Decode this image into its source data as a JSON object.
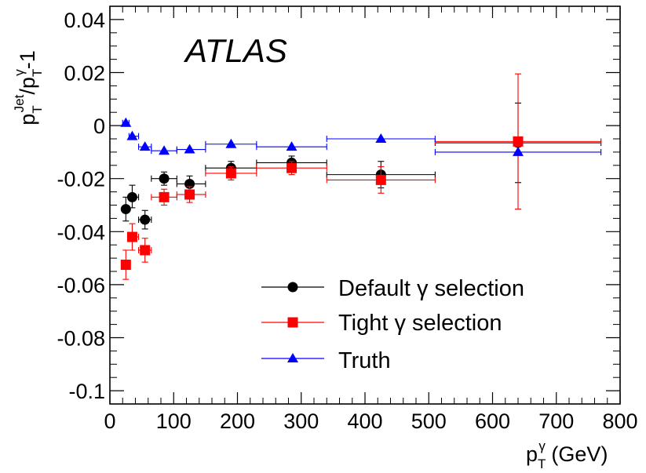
{
  "chart_data": {
    "type": "scatter",
    "experiment_label": "ATLAS",
    "xlabel": {
      "main": "p",
      "sup": "γ",
      "sub": "T",
      "unit": " (GeV)"
    },
    "ylabel": {
      "p1": "p",
      "sup1": "Jet",
      "sub1": "T",
      "slash": "/p",
      "sup2": "γ",
      "sub2": "T",
      "tail": "-1"
    },
    "xlim": [
      0,
      800
    ],
    "ylim": [
      -0.105,
      0.045
    ],
    "x_ticks": [
      0,
      100,
      200,
      300,
      400,
      500,
      600,
      700,
      800
    ],
    "x_tick_labels": [
      "0",
      "100",
      "200",
      "300",
      "400",
      "500",
      "600",
      "700",
      "800"
    ],
    "y_ticks": [
      -0.1,
      -0.08,
      -0.06,
      -0.04,
      -0.02,
      0,
      0.02,
      0.04
    ],
    "y_tick_labels": [
      "-0.1",
      "-0.08",
      "-0.06",
      "-0.04",
      "-0.02",
      "0",
      "0.02",
      "0.04"
    ],
    "legend_position": "bottom-right",
    "series": [
      {
        "name": "Default γ selection",
        "marker": "circle",
        "color": "#000000",
        "points": [
          {
            "x": 25,
            "xlo": 20,
            "xhi": 30,
            "y": -0.0315,
            "ylo": -0.036,
            "yhi": -0.027
          },
          {
            "x": 35,
            "xlo": 30,
            "xhi": 45,
            "y": -0.027,
            "ylo": -0.031,
            "yhi": -0.0225
          },
          {
            "x": 55,
            "xlo": 45,
            "xhi": 65,
            "y": -0.0355,
            "ylo": -0.039,
            "yhi": -0.032
          },
          {
            "x": 85,
            "xlo": 65,
            "xhi": 105,
            "y": -0.02,
            "ylo": -0.0225,
            "yhi": -0.0175
          },
          {
            "x": 125,
            "xlo": 105,
            "xhi": 150,
            "y": -0.022,
            "ylo": -0.025,
            "yhi": -0.019
          },
          {
            "x": 190,
            "xlo": 150,
            "xhi": 230,
            "y": -0.016,
            "ylo": -0.0185,
            "yhi": -0.0135
          },
          {
            "x": 285,
            "xlo": 230,
            "xhi": 340,
            "y": -0.014,
            "ylo": -0.0165,
            "yhi": -0.0115
          },
          {
            "x": 425,
            "xlo": 340,
            "xhi": 510,
            "y": -0.0185,
            "ylo": -0.0235,
            "yhi": -0.0135
          },
          {
            "x": 640,
            "xlo": 510,
            "xhi": 770,
            "y": -0.0065,
            "ylo": -0.0215,
            "yhi": 0.0085
          }
        ]
      },
      {
        "name": "Tight γ selection",
        "marker": "square",
        "color": "#ff0000",
        "points": [
          {
            "x": 25,
            "xlo": 20,
            "xhi": 30,
            "y": -0.0525,
            "ylo": -0.058,
            "yhi": -0.047
          },
          {
            "x": 35,
            "xlo": 30,
            "xhi": 45,
            "y": -0.042,
            "ylo": -0.047,
            "yhi": -0.037
          },
          {
            "x": 55,
            "xlo": 45,
            "xhi": 65,
            "y": -0.047,
            "ylo": -0.0515,
            "yhi": -0.0425
          },
          {
            "x": 85,
            "xlo": 65,
            "xhi": 105,
            "y": -0.027,
            "ylo": -0.03,
            "yhi": -0.024
          },
          {
            "x": 125,
            "xlo": 105,
            "xhi": 150,
            "y": -0.026,
            "ylo": -0.029,
            "yhi": -0.023
          },
          {
            "x": 190,
            "xlo": 150,
            "xhi": 230,
            "y": -0.018,
            "ylo": -0.0205,
            "yhi": -0.0155
          },
          {
            "x": 285,
            "xlo": 230,
            "xhi": 340,
            "y": -0.016,
            "ylo": -0.0185,
            "yhi": -0.0135
          },
          {
            "x": 425,
            "xlo": 340,
            "xhi": 510,
            "y": -0.0205,
            "ylo": -0.0255,
            "yhi": -0.0155
          },
          {
            "x": 640,
            "xlo": 510,
            "xhi": 770,
            "y": -0.006,
            "ylo": -0.0315,
            "yhi": 0.0195
          }
        ]
      },
      {
        "name": "Truth",
        "marker": "triangle",
        "color": "#0000ff",
        "points": [
          {
            "x": 25,
            "xlo": 20,
            "xhi": 30,
            "y": 0.001,
            "ylo": 0.001,
            "yhi": 0.001
          },
          {
            "x": 35,
            "xlo": 30,
            "xhi": 45,
            "y": -0.004,
            "ylo": -0.004,
            "yhi": -0.004
          },
          {
            "x": 55,
            "xlo": 45,
            "xhi": 65,
            "y": -0.008,
            "ylo": -0.008,
            "yhi": -0.008
          },
          {
            "x": 85,
            "xlo": 65,
            "xhi": 105,
            "y": -0.0095,
            "ylo": -0.0095,
            "yhi": -0.0095
          },
          {
            "x": 125,
            "xlo": 105,
            "xhi": 150,
            "y": -0.009,
            "ylo": -0.009,
            "yhi": -0.009
          },
          {
            "x": 190,
            "xlo": 150,
            "xhi": 230,
            "y": -0.007,
            "ylo": -0.007,
            "yhi": -0.007
          },
          {
            "x": 285,
            "xlo": 230,
            "xhi": 340,
            "y": -0.008,
            "ylo": -0.008,
            "yhi": -0.008
          },
          {
            "x": 425,
            "xlo": 340,
            "xhi": 510,
            "y": -0.005,
            "ylo": -0.005,
            "yhi": -0.005
          },
          {
            "x": 640,
            "xlo": 510,
            "xhi": 770,
            "y": -0.01,
            "ylo": -0.01,
            "yhi": -0.01
          }
        ]
      }
    ]
  }
}
